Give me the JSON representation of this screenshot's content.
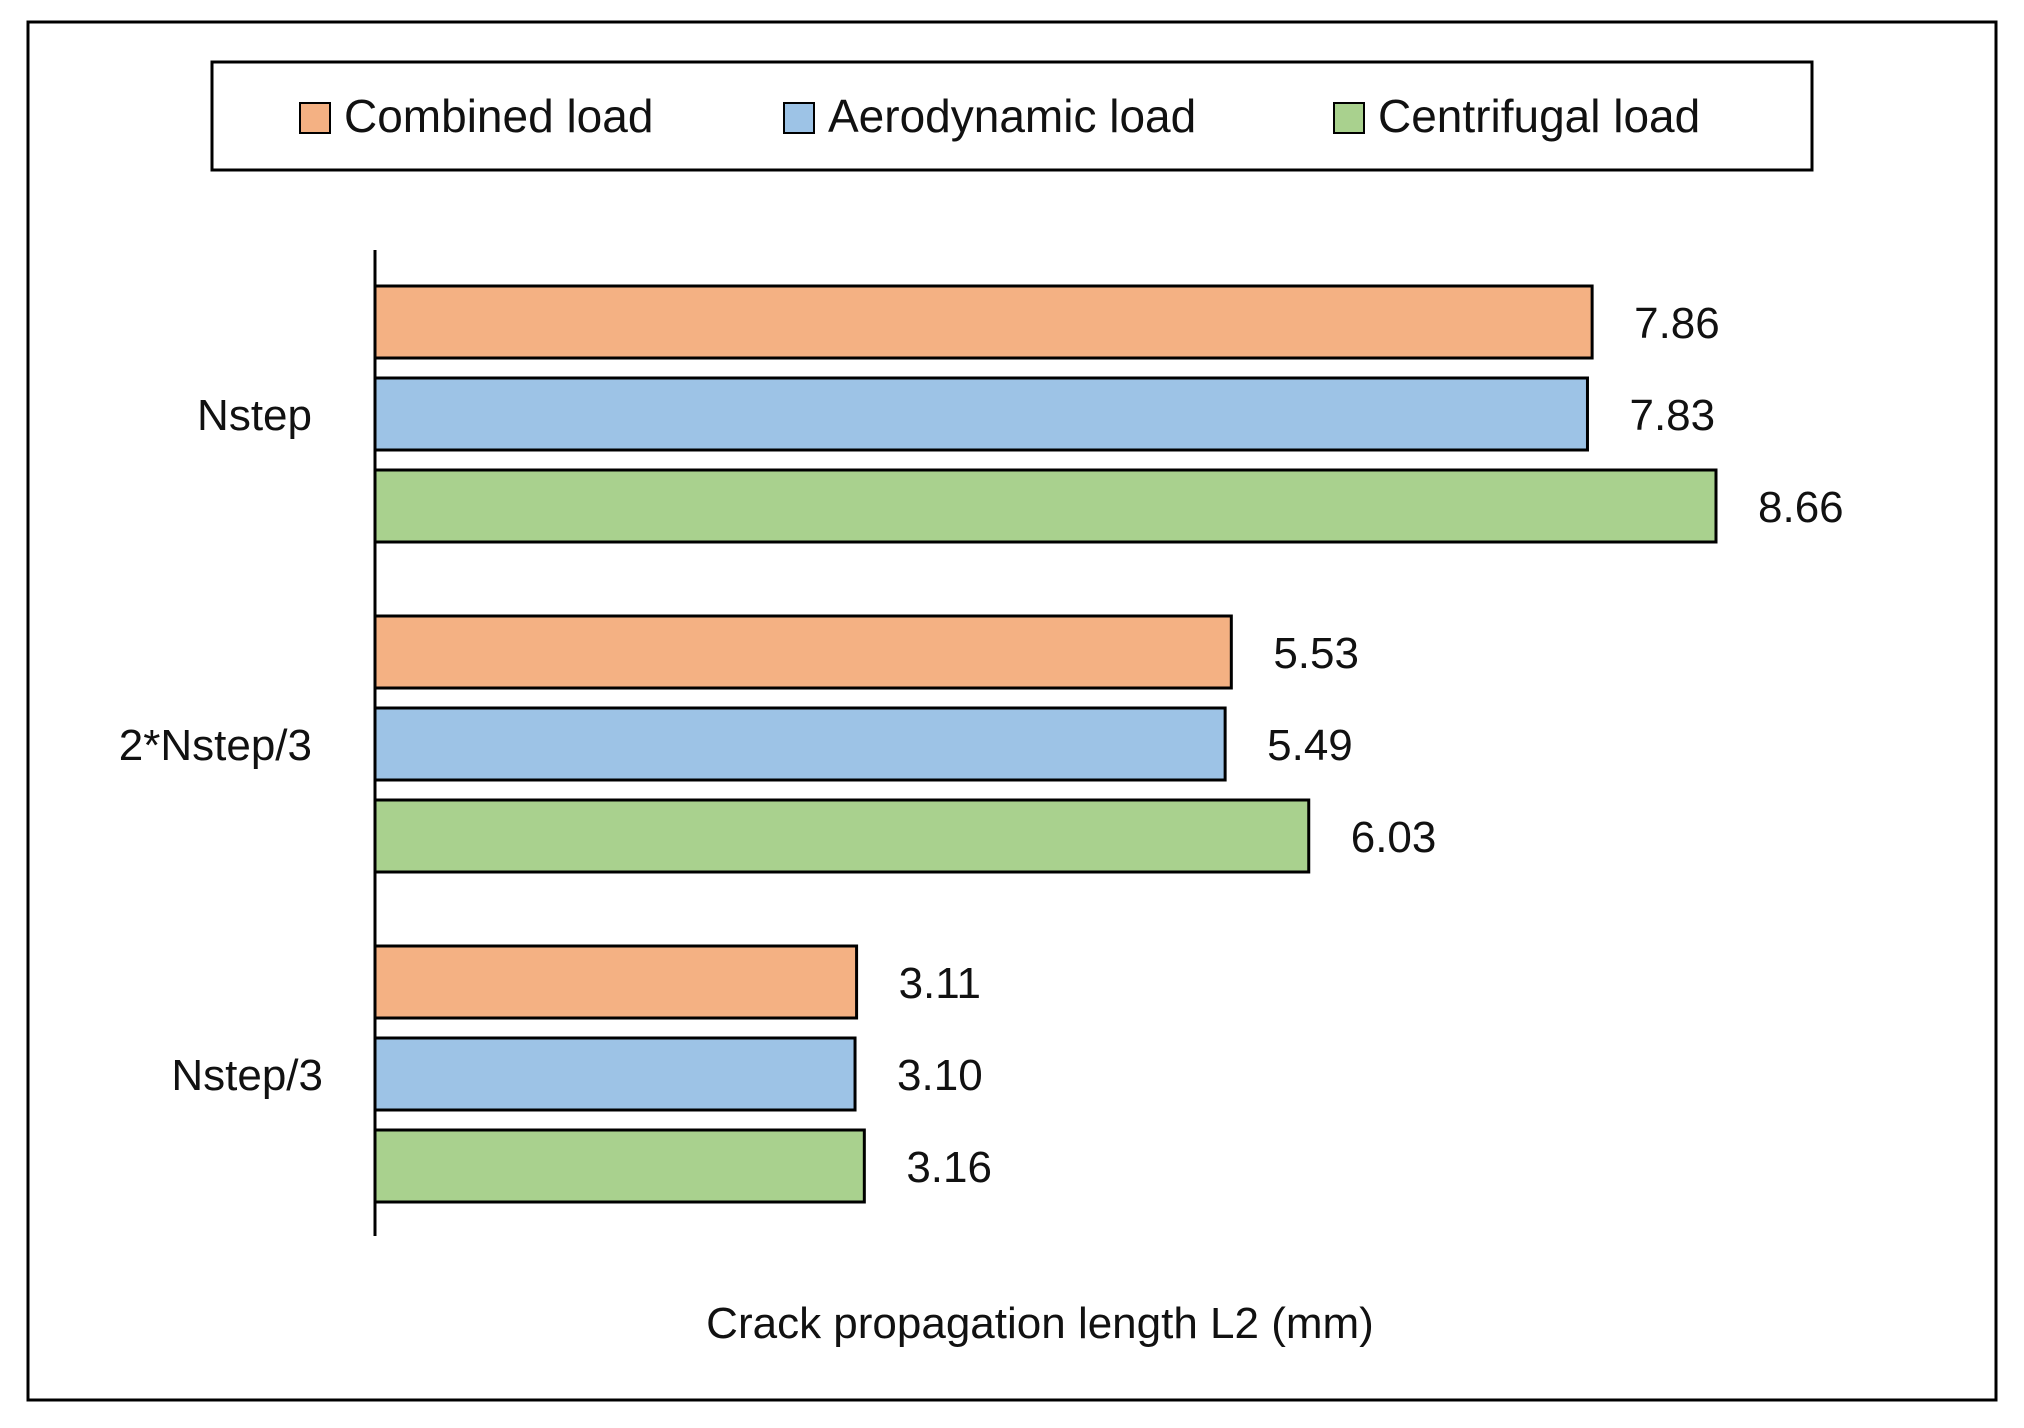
{
  "chart_data": {
    "type": "bar",
    "orientation": "horizontal",
    "title": "",
    "xlabel": "Crack propagation length L2 (mm)",
    "ylabel": "",
    "xlim": [
      0,
      10
    ],
    "grid": false,
    "legend_position": "top",
    "categories": [
      "Nstep",
      "2*Nstep/3",
      "Nstep/3"
    ],
    "series": [
      {
        "name": "Combined load",
        "color": "#F4B183",
        "values": [
          7.86,
          5.53,
          3.11
        ],
        "labels": [
          "7.86",
          "5.53",
          "3.11"
        ]
      },
      {
        "name": "Aerodynamic load",
        "color": "#9DC3E6",
        "values": [
          7.83,
          5.49,
          3.1
        ],
        "labels": [
          "7.83",
          "5.49",
          "3.10"
        ]
      },
      {
        "name": "Centrifugal load",
        "color": "#A9D18E",
        "values": [
          8.66,
          6.03,
          3.16
        ],
        "labels": [
          "8.66",
          "6.03",
          "3.16"
        ]
      }
    ]
  }
}
